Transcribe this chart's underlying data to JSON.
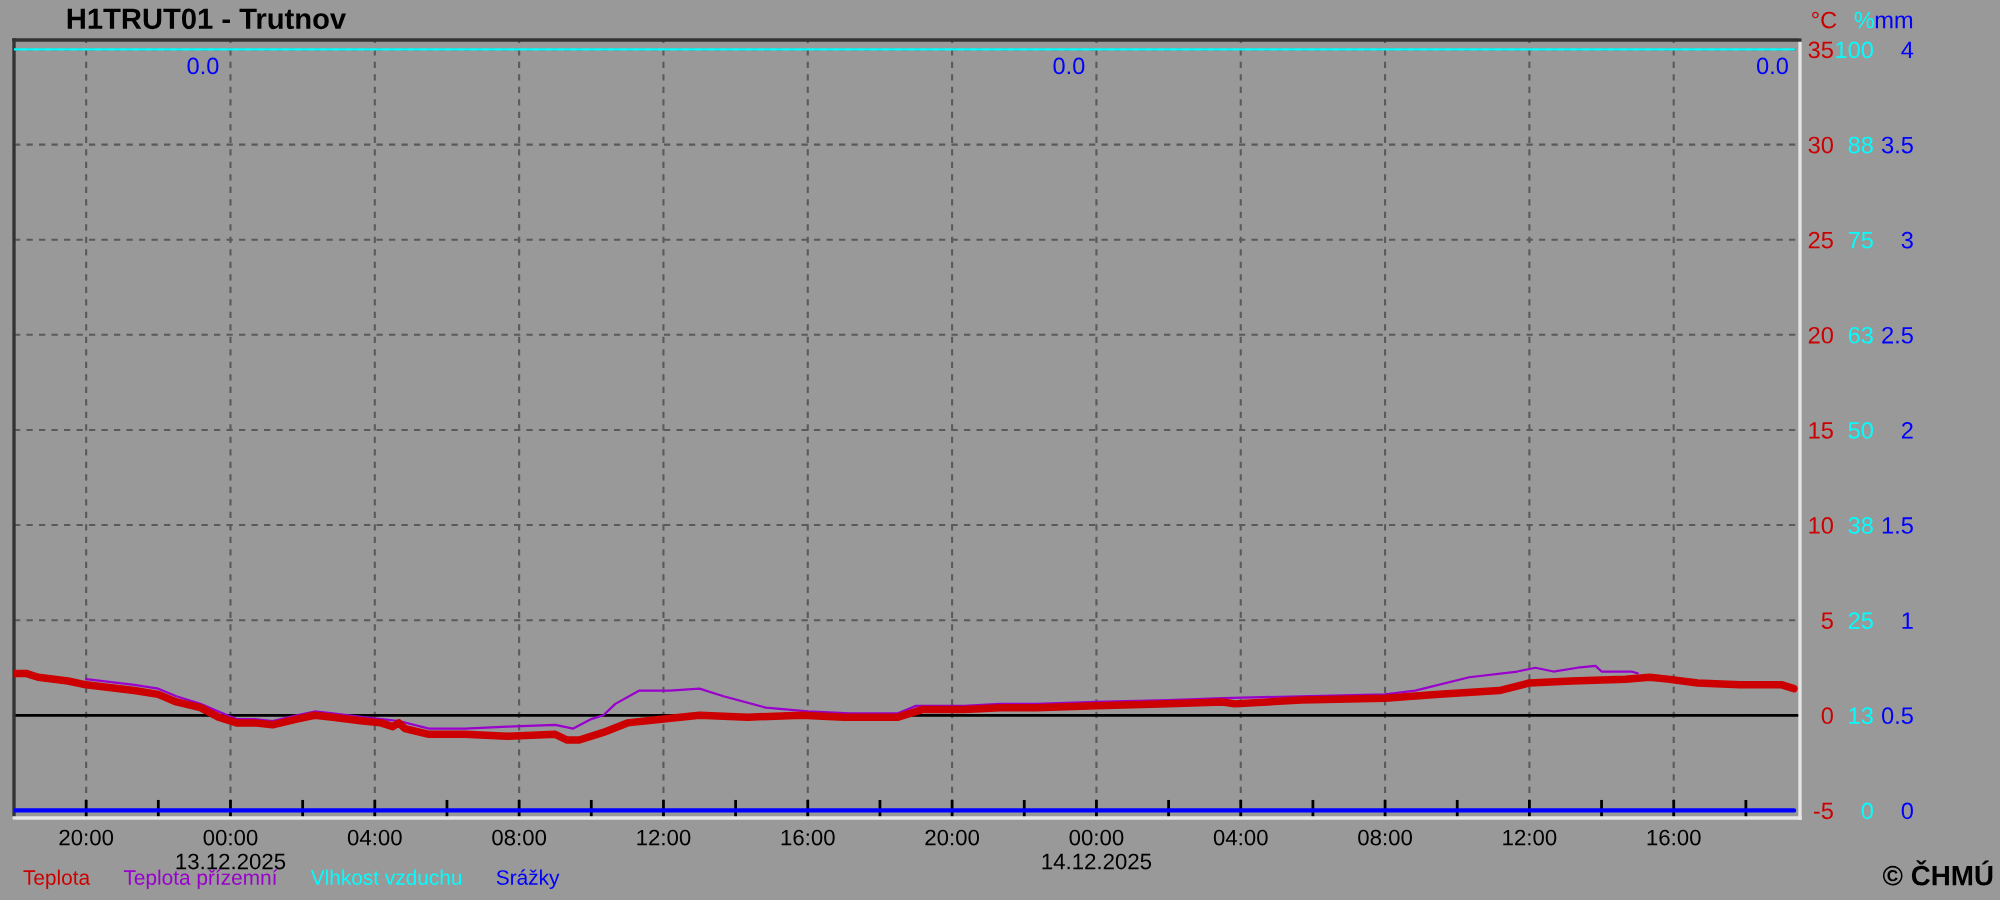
{
  "chart_data": {
    "type": "line",
    "title": "H1TRUT01 - Trutnov",
    "ylabel": "°C",
    "y2label": "%",
    "y3label": "mm",
    "xlim": [
      "2025-12-12T18:00",
      "2025-12-14T19:30"
    ],
    "xticks": [
      {
        "value": "2025-12-12T20:00",
        "label": "20:00"
      },
      {
        "value": "2025-12-12T22:00",
        "label": null
      },
      {
        "value": "2025-12-13T00:00",
        "label": "00:00\n13.12.2025"
      },
      {
        "value": "2025-12-13T02:00",
        "label": null
      },
      {
        "value": "2025-12-13T04:00",
        "label": "04:00"
      },
      {
        "value": "2025-12-13T06:00",
        "label": null
      },
      {
        "value": "2025-12-13T08:00",
        "label": "08:00"
      },
      {
        "value": "2025-12-13T10:00",
        "label": null
      },
      {
        "value": "2025-12-13T12:00",
        "label": "12:00"
      },
      {
        "value": "2025-12-13T14:00",
        "label": null
      },
      {
        "value": "2025-12-13T16:00",
        "label": "16:00"
      },
      {
        "value": "2025-12-13T18:00",
        "label": null
      },
      {
        "value": "2025-12-13T20:00",
        "label": "20:00"
      },
      {
        "value": "2025-12-13T22:00",
        "label": null
      },
      {
        "value": "2025-12-14T00:00",
        "label": "00:00\n14.12.2025"
      },
      {
        "value": "2025-12-14T02:00",
        "label": null
      },
      {
        "value": "2025-12-14T04:00",
        "label": "04:00"
      },
      {
        "value": "2025-12-14T06:00",
        "label": null
      },
      {
        "value": "2025-12-14T08:00",
        "label": "08:00"
      },
      {
        "value": "2025-12-14T10:00",
        "label": null
      },
      {
        "value": "2025-12-14T12:00",
        "label": "12:00"
      },
      {
        "value": "2025-12-14T14:00",
        "label": null
      },
      {
        "value": "2025-12-14T16:00",
        "label": "16:00"
      },
      {
        "value": "2025-12-14T18:00",
        "label": null
      }
    ],
    "ylim": [
      -5.4,
      35.5
    ],
    "yticks": [
      -5,
      0,
      5,
      10,
      15,
      20,
      25,
      30,
      35
    ],
    "y2lim": [
      -1,
      101.25
    ],
    "y2ticks": [
      0,
      {
        "value": 12.5,
        "label": "13"
      },
      25,
      {
        "value": 37.5,
        "label": "38"
      },
      50,
      {
        "value": 62.5,
        "label": "63"
      },
      75,
      {
        "value": 87.5,
        "label": "88"
      },
      100
    ],
    "y3lim": [
      -0.04,
      4.05
    ],
    "y3ticks": [
      0,
      0.5,
      1,
      1.5,
      2,
      2.5,
      3,
      3.5,
      4
    ],
    "series": [
      {
        "name": "Teplota",
        "color": "#cc0000",
        "x": [
          "2025-12-12T18:00",
          "2025-12-12T18:20",
          "2025-12-12T18:40",
          "2025-12-12T19:30",
          "2025-12-12T20:00",
          "2025-12-12T21:20",
          "2025-12-12T22:00",
          "2025-12-12T22:30",
          "2025-12-12T23:10",
          "2025-12-12T23:40",
          "2025-12-13T00:10",
          "2025-12-13T00:40",
          "2025-12-13T01:10",
          "2025-12-13T01:50",
          "2025-12-13T02:20",
          "2025-12-13T02:50",
          "2025-12-13T03:40",
          "2025-12-13T04:10",
          "2025-12-13T04:30",
          "2025-12-13T04:40",
          "2025-12-13T04:50",
          "2025-12-13T05:30",
          "2025-12-13T06:30",
          "2025-12-13T07:40",
          "2025-12-13T09:00",
          "2025-12-13T09:20",
          "2025-12-13T09:40",
          "2025-12-13T10:20",
          "2025-12-13T11:00",
          "2025-12-13T12:00",
          "2025-12-13T13:00",
          "2025-12-13T14:20",
          "2025-12-13T15:50",
          "2025-12-13T17:00",
          "2025-12-13T18:30",
          "2025-12-13T19:10",
          "2025-12-13T20:20",
          "2025-12-13T21:20",
          "2025-12-13T22:20",
          "2025-12-14T00:00",
          "2025-12-14T02:00",
          "2025-12-14T03:30",
          "2025-12-14T03:50",
          "2025-12-14T05:40",
          "2025-12-14T08:00",
          "2025-12-14T09:30",
          "2025-12-14T11:10",
          "2025-12-14T12:00",
          "2025-12-14T13:10",
          "2025-12-14T14:40",
          "2025-12-14T15:20",
          "2025-12-14T15:50",
          "2025-12-14T16:40",
          "2025-12-14T17:50",
          "2025-12-14T19:00",
          "2025-12-14T19:20"
        ],
        "values": [
          2.2,
          2.2,
          2.0,
          1.8,
          1.6,
          1.3,
          1.1,
          0.7,
          0.4,
          -0.1,
          -0.4,
          -0.4,
          -0.5,
          -0.2,
          0.0,
          -0.1,
          -0.3,
          -0.4,
          -0.6,
          -0.4,
          -0.7,
          -1.0,
          -1.0,
          -1.1,
          -1.0,
          -1.3,
          -1.3,
          -0.9,
          -0.4,
          -0.2,
          0.0,
          -0.1,
          0.0,
          -0.1,
          -0.1,
          0.3,
          0.3,
          0.4,
          0.4,
          0.5,
          0.6,
          0.7,
          0.6,
          0.8,
          0.9,
          1.1,
          1.3,
          1.7,
          1.8,
          1.9,
          2.0,
          1.9,
          1.7,
          1.6,
          1.6,
          1.4
        ]
      },
      {
        "name": "Teplota přízemní",
        "color": "#9900cc",
        "x": [
          "2025-12-12T20:00",
          "2025-12-12T21:20",
          "2025-12-12T22:00",
          "2025-12-12T22:30",
          "2025-12-12T23:10",
          "2025-12-12T23:40",
          "2025-12-13T00:10",
          "2025-12-13T00:40",
          "2025-12-13T01:10",
          "2025-12-13T01:50",
          "2025-12-13T02:20",
          "2025-12-13T02:50",
          "2025-12-13T03:40",
          "2025-12-13T04:10",
          "2025-12-13T04:40",
          "2025-12-13T05:30",
          "2025-12-13T06:30",
          "2025-12-13T07:40",
          "2025-12-13T09:00",
          "2025-12-13T09:30",
          "2025-12-13T10:00",
          "2025-12-13T10:20",
          "2025-12-13T10:40",
          "2025-12-13T11:20",
          "2025-12-13T12:10",
          "2025-12-13T13:00",
          "2025-12-13T13:40",
          "2025-12-13T14:50",
          "2025-12-13T16:00",
          "2025-12-13T17:10",
          "2025-12-13T18:30",
          "2025-12-13T19:00",
          "2025-12-13T20:20",
          "2025-12-13T21:20",
          "2025-12-13T22:20",
          "2025-12-14T00:00",
          "2025-12-14T02:00",
          "2025-12-14T03:30",
          "2025-12-14T05:40",
          "2025-12-14T08:00",
          "2025-12-14T08:50",
          "2025-12-14T10:20",
          "2025-12-14T11:40",
          "2025-12-14T12:10",
          "2025-12-14T12:40",
          "2025-12-14T13:20",
          "2025-12-14T13:50",
          "2025-12-14T14:00",
          "2025-12-14T14:50",
          "2025-12-14T15:00"
        ],
        "values": [
          1.9,
          1.6,
          1.4,
          1.0,
          0.6,
          0.2,
          -0.2,
          -0.2,
          -0.3,
          0.0,
          0.2,
          0.1,
          -0.1,
          -0.2,
          -0.3,
          -0.7,
          -0.7,
          -0.6,
          -0.5,
          -0.7,
          -0.2,
          0.0,
          0.6,
          1.3,
          1.3,
          1.4,
          1.0,
          0.4,
          0.2,
          0.1,
          0.1,
          0.5,
          0.5,
          0.6,
          0.6,
          0.7,
          0.8,
          0.9,
          1.0,
          1.1,
          1.3,
          2.0,
          2.3,
          2.5,
          2.3,
          2.5,
          2.6,
          2.3,
          2.3,
          2.2
        ]
      },
      {
        "name": "Vlhkost vzduchu",
        "color": "#00ffff",
        "axis": "y2",
        "x": [
          "2025-12-12T18:00",
          "2025-12-13T00:00",
          "2025-12-14T00:00",
          "2025-12-14T19:20"
        ],
        "values": [
          100,
          100,
          100,
          100
        ]
      },
      {
        "name": "Srážky",
        "color": "#0000ff",
        "axis": "y3",
        "x": [
          "2025-12-12T18:00",
          "2025-12-13T00:00",
          "2025-12-14T00:00",
          "2025-12-14T19:20"
        ],
        "values": [
          0,
          0,
          0,
          0
        ]
      }
    ],
    "ref_lines": [
      {
        "axis": "y",
        "value": 0,
        "color": "#000000"
      }
    ],
    "annotations": [
      "0.0",
      "0.0",
      "0.0",
      "© ČHMÚ"
    ],
    "grid": true,
    "legend": "bottom left",
    "marker": "none",
    "line_style": "solid"
  }
}
